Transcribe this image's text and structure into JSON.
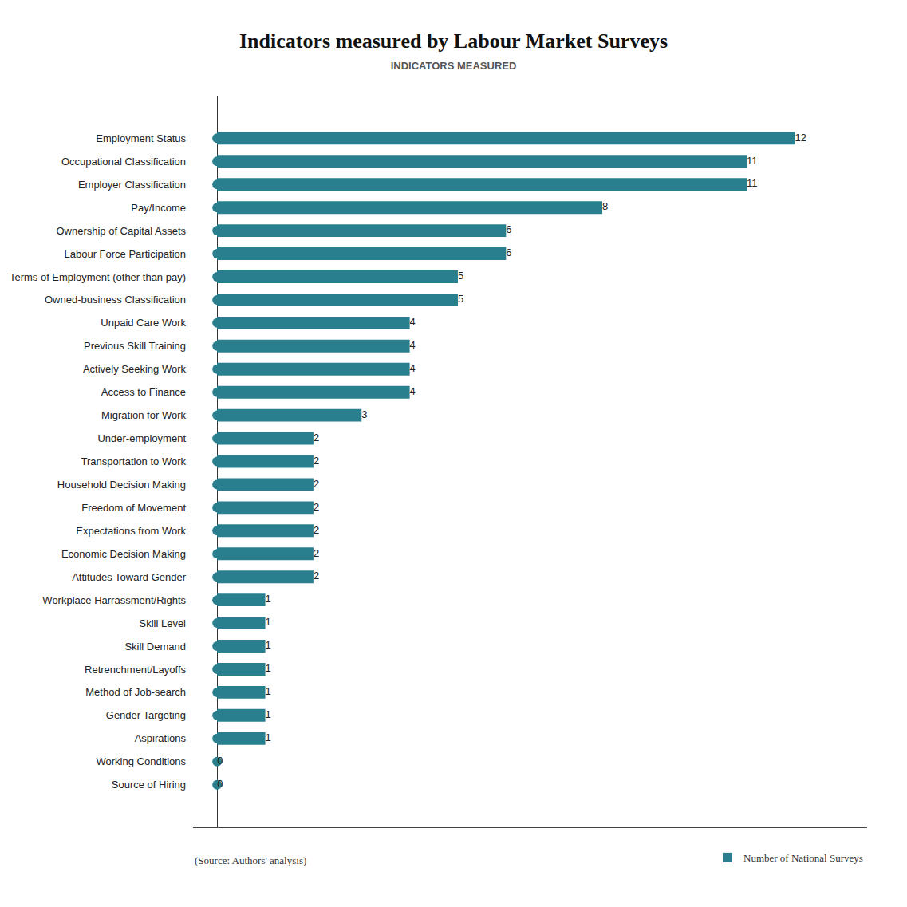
{
  "chart_data": {
    "type": "bar",
    "orientation": "horizontal",
    "title": "Indicators measured by Labour Market Surveys",
    "subtitle": "INDICATORS MEASURED",
    "categories": [
      "Employment Status",
      "Occupational Classification",
      "Employer Classification",
      "Pay/Income",
      "Ownership of Capital Assets",
      "Labour Force Participation",
      "Terms of Employment (other than pay)",
      "Owned-business Classification",
      "Unpaid Care Work",
      "Previous Skill Training",
      "Actively Seeking Work",
      "Access to Finance",
      "Migration for Work",
      "Under-employment",
      "Transportation to Work",
      "Household Decision Making",
      "Freedom of Movement",
      "Expectations from Work",
      "Economic Decision Making",
      "Attitudes Toward Gender",
      "Workplace Harrassment/Rights",
      "Skill Level",
      "Skill Demand",
      "Retrenchment/Layoffs",
      "Method of Job-search",
      "Gender Targeting",
      "Aspirations",
      "Working Conditions",
      "Source of Hiring"
    ],
    "series": [
      {
        "name": "Number of National Surveys",
        "type": "bar",
        "color": "#2a7f8f",
        "marker": "circle",
        "values": [
          12,
          11,
          11,
          8,
          6,
          6,
          5,
          5,
          4,
          4,
          4,
          4,
          3,
          2,
          2,
          2,
          2,
          2,
          2,
          2,
          1,
          1,
          1,
          1,
          1,
          1,
          1,
          0,
          0
        ]
      }
    ],
    "xlim": [
      -0.5,
      13.5
    ],
    "tick_labels": "y",
    "grid": false,
    "data_labels": true,
    "legend": "bottom",
    "annotations": [
      "(Source: Authors' analysis)"
    ]
  }
}
